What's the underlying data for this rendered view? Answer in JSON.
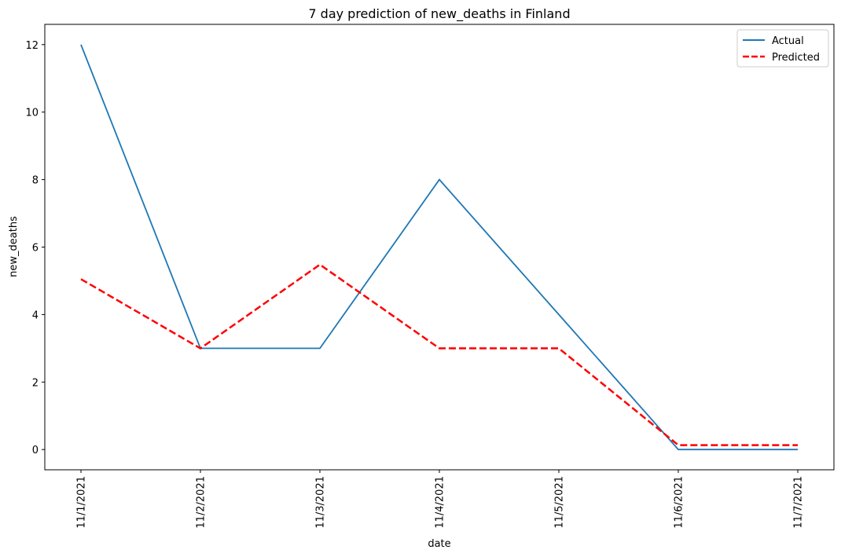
{
  "chart_data": {
    "type": "line",
    "title": "7 day prediction of new_deaths in Finland",
    "xlabel": "date",
    "ylabel": "new_deaths",
    "categories": [
      "11/1/2021",
      "11/2/2021",
      "11/3/2021",
      "11/4/2021",
      "11/5/2021",
      "11/6/2021",
      "11/7/2021"
    ],
    "ylim": [
      -0.6,
      12.6
    ],
    "yticks": [
      0,
      2,
      4,
      6,
      8,
      10,
      12
    ],
    "grid": false,
    "legend": "top-right",
    "series": [
      {
        "name": "Actual",
        "values": [
          12,
          3,
          3,
          8,
          4,
          0,
          0
        ],
        "color": "#1f77b4",
        "style": "solid"
      },
      {
        "name": "Predicted",
        "values": [
          5.05,
          3.0,
          5.48,
          3.0,
          3.0,
          0.13,
          0.13
        ],
        "color": "#ff0000",
        "style": "dashed"
      }
    ]
  }
}
